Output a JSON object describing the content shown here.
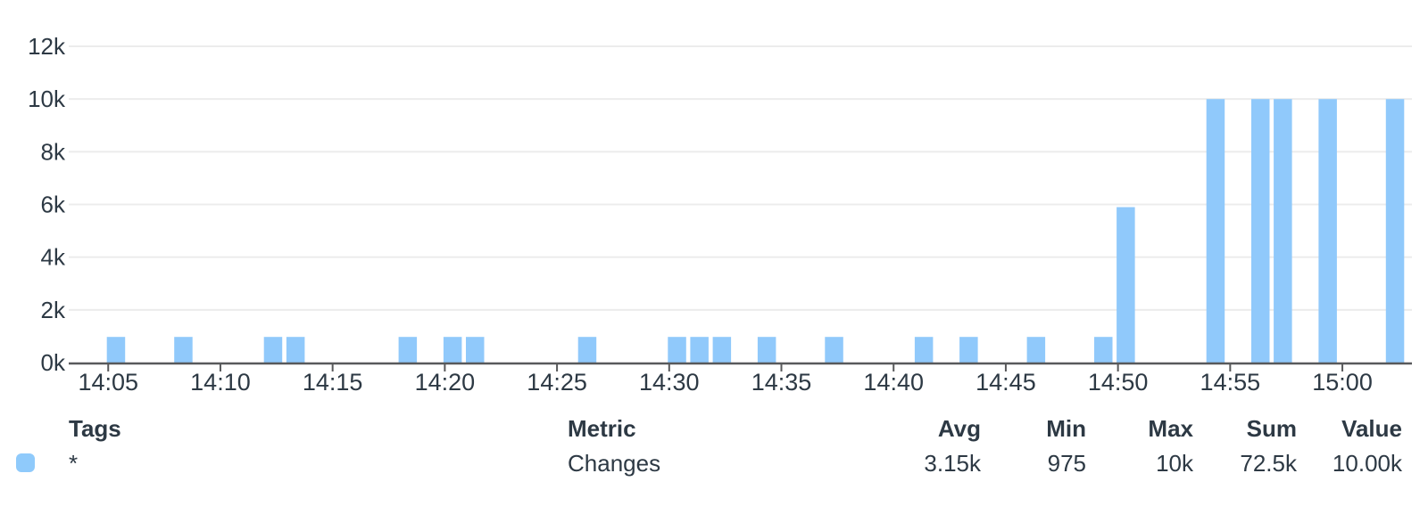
{
  "colors": {
    "bar": "#90C9FB",
    "grid": "#ececec",
    "axis": "#58595b",
    "text": "#2d3944"
  },
  "chart_data": {
    "type": "bar",
    "title": "",
    "xlabel": "",
    "ylabel": "",
    "ylim": [
      0,
      12000
    ],
    "grid": true,
    "legend_position": "bottom-table",
    "x_window_minutes": [
      3.24,
      63.1
    ],
    "y_ticks": [
      {
        "value": 0,
        "label": "0k"
      },
      {
        "value": 2000,
        "label": "2k"
      },
      {
        "value": 4000,
        "label": "4k"
      },
      {
        "value": 6000,
        "label": "6k"
      },
      {
        "value": 8000,
        "label": "8k"
      },
      {
        "value": 10000,
        "label": "10k"
      },
      {
        "value": 12000,
        "label": "12k"
      }
    ],
    "x_ticks": [
      {
        "minute": 5,
        "label": "14:05"
      },
      {
        "minute": 10,
        "label": "14:10"
      },
      {
        "minute": 15,
        "label": "14:15"
      },
      {
        "minute": 20,
        "label": "14:20"
      },
      {
        "minute": 25,
        "label": "14:25"
      },
      {
        "minute": 30,
        "label": "14:30"
      },
      {
        "minute": 35,
        "label": "14:35"
      },
      {
        "minute": 40,
        "label": "14:40"
      },
      {
        "minute": 45,
        "label": "14:45"
      },
      {
        "minute": 50,
        "label": "14:50"
      },
      {
        "minute": 55,
        "label": "14:55"
      },
      {
        "minute": 60,
        "label": "15:00"
      }
    ],
    "series": [
      {
        "name": "Changes",
        "tags": "*",
        "points": [
          {
            "time": "14:05",
            "minute": 5,
            "value": 975
          },
          {
            "time": "14:08",
            "minute": 8,
            "value": 975
          },
          {
            "time": "14:12",
            "minute": 12,
            "value": 975
          },
          {
            "time": "14:13",
            "minute": 13,
            "value": 975
          },
          {
            "time": "14:18",
            "minute": 18,
            "value": 975
          },
          {
            "time": "14:20",
            "minute": 20,
            "value": 975
          },
          {
            "time": "14:21",
            "minute": 21,
            "value": 975
          },
          {
            "time": "14:26",
            "minute": 26,
            "value": 975
          },
          {
            "time": "14:30",
            "minute": 30,
            "value": 975
          },
          {
            "time": "14:31",
            "minute": 31,
            "value": 975
          },
          {
            "time": "14:32",
            "minute": 32,
            "value": 975
          },
          {
            "time": "14:34",
            "minute": 34,
            "value": 975
          },
          {
            "time": "14:37",
            "minute": 37,
            "value": 975
          },
          {
            "time": "14:41",
            "minute": 41,
            "value": 975
          },
          {
            "time": "14:43",
            "minute": 43,
            "value": 975
          },
          {
            "time": "14:46",
            "minute": 46,
            "value": 975
          },
          {
            "time": "14:49",
            "minute": 49,
            "value": 975
          },
          {
            "time": "14:50",
            "minute": 50,
            "value": 5900
          },
          {
            "time": "14:54",
            "minute": 54,
            "value": 10000
          },
          {
            "time": "14:56",
            "minute": 56,
            "value": 10000
          },
          {
            "time": "14:57",
            "minute": 57,
            "value": 10000
          },
          {
            "time": "14:59",
            "minute": 59,
            "value": 10000
          },
          {
            "time": "15:02",
            "minute": 62,
            "value": 10000
          }
        ]
      }
    ]
  },
  "legend": {
    "headers": {
      "tags": "Tags",
      "metric": "Metric",
      "avg": "Avg",
      "min": "Min",
      "max": "Max",
      "sum": "Sum",
      "value": "Value"
    },
    "row": {
      "swatch_color": "#8FCAFB",
      "tags": "*",
      "metric": "Changes",
      "avg": "3.15k",
      "min": "975",
      "max": "10k",
      "sum": "72.5k",
      "value": "10.00k"
    }
  }
}
